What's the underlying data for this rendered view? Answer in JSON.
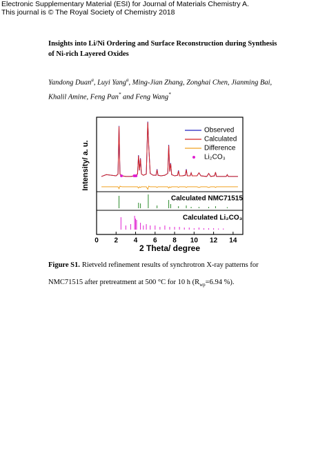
{
  "header": {
    "lines": [
      "Electronic Supplementary Material (ESI) for Journal of Materials Chemistry A.",
      "This journal is © The Royal Society of Chemistry 2018"
    ]
  },
  "title": "Insights into Li/Ni Ordering and Surface Reconstruction during Synthesis of Ni-rich Layered Oxides",
  "authors": [
    {
      "text": "Yandong Duan",
      "sup": "a"
    },
    {
      "text": ", Luyi Yang",
      "sup": "a"
    },
    {
      "text": ", Ming-Jian Zhang, Zonghai Chen, Jianming Bai, Khalil Amine, Feng Pan",
      "sup": "*"
    },
    {
      "text": " and Feng Wang",
      "sup": "*"
    }
  ],
  "chart_data": {
    "type": "line",
    "xlabel": "2 Theta/ degree",
    "ylabel": "Intensity/ a. u.",
    "xlim": [
      0,
      15
    ],
    "xticks": [
      0,
      2,
      4,
      6,
      8,
      10,
      12,
      14
    ],
    "ylim": [
      -0.15,
      1.05
    ],
    "legend": "top-right",
    "x": [
      0.5,
      1.0,
      1.5,
      2.0,
      2.2,
      2.3,
      2.4,
      2.6,
      3.0,
      3.5,
      4.0,
      4.2,
      4.3,
      4.4,
      4.5,
      4.6,
      4.8,
      5.1,
      5.25,
      5.35,
      5.5,
      5.8,
      6.1,
      6.2,
      6.3,
      6.6,
      7.0,
      7.3,
      7.4,
      7.5,
      7.6,
      7.7,
      8.0,
      8.3,
      8.4,
      8.5,
      8.8,
      9.1,
      9.2,
      9.3,
      9.6,
      9.7,
      9.8,
      10.3,
      10.5,
      10.7,
      11.3,
      11.5,
      11.7,
      12.1,
      12.2,
      12.3,
      12.8,
      13.3,
      13.4,
      13.5,
      14.0,
      14.5
    ],
    "series": [
      {
        "name": "Observed",
        "color": "#2020c0",
        "values": [
          0.1,
          0.13,
          0.12,
          0.11,
          0.14,
          0.93,
          0.14,
          0.11,
          0.1,
          0.1,
          0.11,
          0.14,
          0.45,
          0.2,
          0.4,
          0.14,
          0.12,
          0.14,
          1.0,
          0.6,
          0.15,
          0.12,
          0.12,
          0.22,
          0.12,
          0.11,
          0.12,
          0.15,
          0.62,
          0.18,
          0.32,
          0.13,
          0.11,
          0.12,
          0.2,
          0.11,
          0.11,
          0.12,
          0.22,
          0.11,
          0.11,
          0.16,
          0.11,
          0.11,
          0.16,
          0.11,
          0.1,
          0.15,
          0.1,
          0.11,
          0.17,
          0.1,
          0.1,
          0.1,
          0.13,
          0.1,
          0.1,
          0.1
        ]
      },
      {
        "name": "Calculated",
        "color": "#d42020",
        "values": [
          0.1,
          0.13,
          0.12,
          0.11,
          0.14,
          0.92,
          0.14,
          0.11,
          0.1,
          0.1,
          0.11,
          0.14,
          0.44,
          0.2,
          0.39,
          0.14,
          0.12,
          0.14,
          0.99,
          0.6,
          0.15,
          0.12,
          0.12,
          0.21,
          0.12,
          0.11,
          0.12,
          0.15,
          0.61,
          0.18,
          0.31,
          0.13,
          0.11,
          0.12,
          0.19,
          0.11,
          0.11,
          0.12,
          0.21,
          0.11,
          0.11,
          0.16,
          0.11,
          0.11,
          0.16,
          0.11,
          0.1,
          0.15,
          0.1,
          0.11,
          0.17,
          0.1,
          0.1,
          0.1,
          0.13,
          0.1,
          0.1,
          0.1
        ]
      },
      {
        "name": "Difference",
        "color": "#f0a020",
        "values": [
          -0.07,
          -0.07,
          -0.07,
          -0.07,
          -0.07,
          -0.1,
          -0.06,
          -0.07,
          -0.07,
          -0.07,
          -0.07,
          -0.07,
          -0.09,
          -0.07,
          -0.08,
          -0.07,
          -0.07,
          -0.07,
          -0.11,
          -0.06,
          -0.07,
          -0.07,
          -0.07,
          -0.08,
          -0.07,
          -0.07,
          -0.07,
          -0.07,
          -0.09,
          -0.07,
          -0.08,
          -0.07,
          -0.07,
          -0.07,
          -0.08,
          -0.07,
          -0.07,
          -0.07,
          -0.08,
          -0.07,
          -0.07,
          -0.07,
          -0.07,
          -0.07,
          -0.08,
          -0.07,
          -0.07,
          -0.08,
          -0.07,
          -0.07,
          -0.08,
          -0.07,
          -0.07,
          -0.07,
          -0.07,
          -0.07,
          -0.07,
          -0.07
        ]
      },
      {
        "name": "Li₂CO₃",
        "color": "#e020d0",
        "marker": true,
        "x": [
          2.55,
          3.85,
          3.95,
          4.05
        ],
        "values": [
          0.11,
          0.11,
          0.11,
          0.11
        ]
      }
    ],
    "reflections": [
      {
        "name": "Calculated NMC71515",
        "color": "#2a8a2a",
        "ylim": [
          0,
          1
        ],
        "x": [
          2.3,
          4.3,
          4.5,
          5.3,
          6.2,
          7.4,
          7.6,
          8.4,
          9.2,
          9.7,
          10.5,
          11.5,
          12.2,
          13.4
        ],
        "values": [
          0.9,
          0.4,
          0.35,
          1.0,
          0.2,
          0.6,
          0.3,
          0.15,
          0.2,
          0.1,
          0.1,
          0.1,
          0.15,
          0.08
        ]
      },
      {
        "name": "Calculated Li₂CO₃",
        "color": "#e020d0",
        "ylim": [
          0,
          1
        ],
        "x": [
          2.5,
          3.0,
          3.5,
          3.9,
          4.0,
          4.1,
          4.5,
          4.8,
          5.1,
          5.5,
          6.0,
          6.5,
          7.0,
          7.5,
          8.0,
          8.5,
          9.0,
          9.5,
          10.0,
          10.5,
          11.0,
          11.5,
          12.0,
          12.5,
          13.0
        ],
        "values": [
          0.9,
          0.3,
          0.4,
          1.0,
          0.8,
          0.7,
          0.5,
          0.3,
          0.4,
          0.3,
          0.3,
          0.2,
          0.3,
          0.2,
          0.2,
          0.2,
          0.15,
          0.15,
          0.1,
          0.15,
          0.1,
          0.1,
          0.1,
          0.08,
          0.08
        ]
      }
    ]
  },
  "caption": {
    "label": "Figure S1.",
    "text": "Rietveld refinement results of synchrotron X-ray patterns for NMC71515 after pretreatment at 500 °C for 10 h (R",
    "sub": "wp",
    "tail": "=6.94 %)."
  }
}
